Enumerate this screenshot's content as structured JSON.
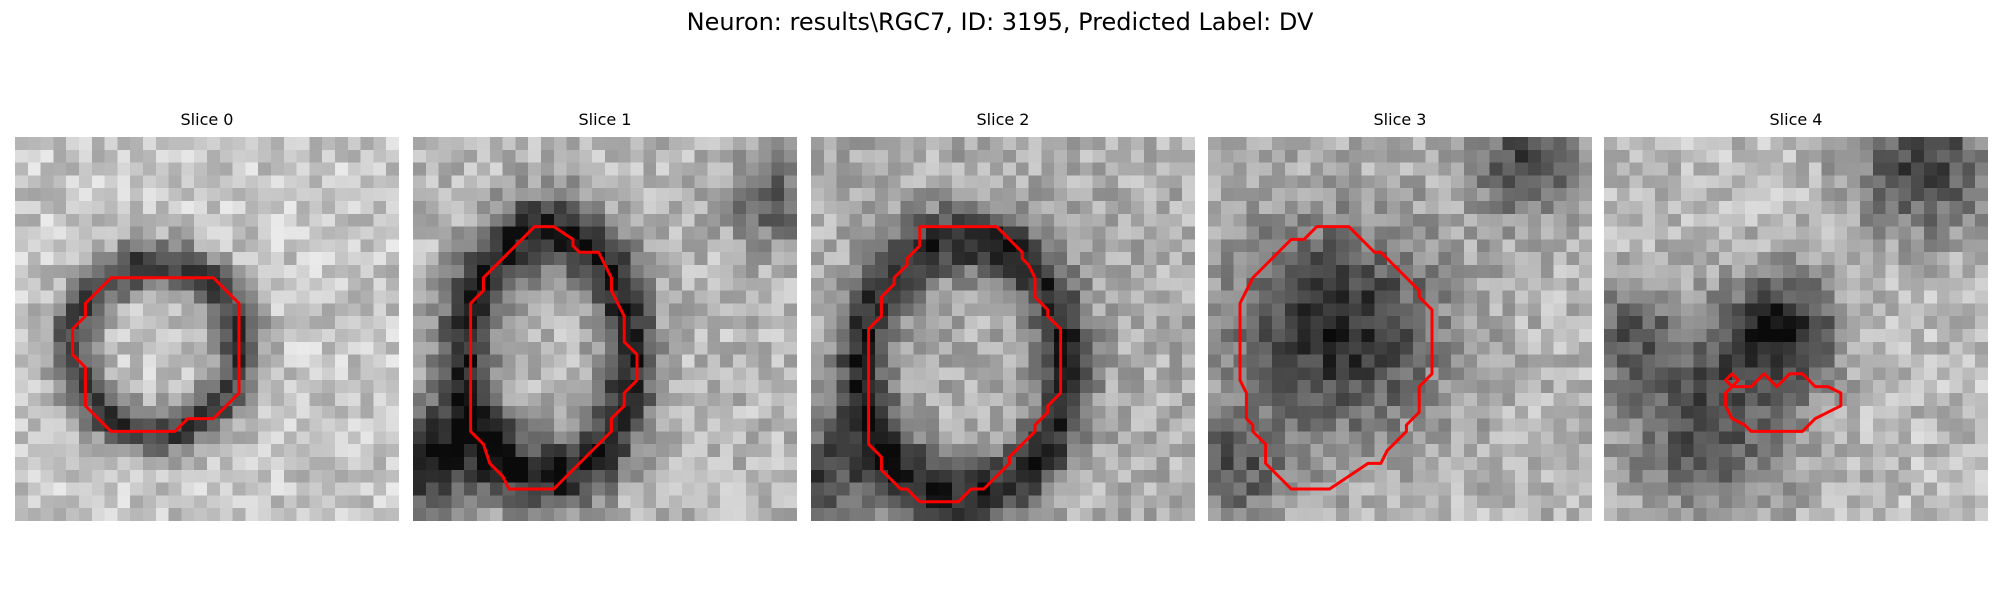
{
  "figure": {
    "title": "Neuron: results\\RGC7, ID: 3195, Predicted Label: DV"
  },
  "colormap": "gray",
  "contour_color": "#ff0000",
  "slices": [
    {
      "title": "Slice 0",
      "contours": [
        [
          [
            12.5,
            11
          ],
          [
            15.5,
            11
          ],
          [
            17.5,
            13
          ],
          [
            17.5,
            20
          ],
          [
            15.5,
            22
          ],
          [
            13.5,
            22
          ],
          [
            13,
            22.5
          ],
          [
            12.5,
            23
          ],
          [
            10.5,
            23
          ],
          [
            7.5,
            23
          ],
          [
            5.5,
            21
          ],
          [
            5.5,
            18
          ],
          [
            4.5,
            17
          ],
          [
            4.5,
            15
          ],
          [
            5.5,
            14
          ],
          [
            5.5,
            13
          ],
          [
            7.5,
            11
          ],
          [
            12.5,
            11
          ]
        ]
      ]
    },
    {
      "title": "Slice 1",
      "contours": [
        [
          [
            9.5,
            7
          ],
          [
            11,
            7
          ],
          [
            12.5,
            8
          ],
          [
            12.5,
            8.5
          ],
          [
            13,
            9
          ],
          [
            14.5,
            9
          ],
          [
            15,
            10
          ],
          [
            15.5,
            11
          ],
          [
            15.5,
            12
          ],
          [
            16,
            13
          ],
          [
            16.5,
            14
          ],
          [
            16.5,
            16
          ],
          [
            17.5,
            17
          ],
          [
            17.5,
            19
          ],
          [
            16.5,
            20
          ],
          [
            16.5,
            21
          ],
          [
            15.5,
            22
          ],
          [
            15.5,
            23
          ],
          [
            13.5,
            25
          ],
          [
            12.5,
            26
          ],
          [
            11,
            27.5
          ],
          [
            7.5,
            27.5
          ],
          [
            7,
            26.5
          ],
          [
            6.5,
            26
          ],
          [
            6,
            25.5
          ],
          [
            5.5,
            24
          ],
          [
            5,
            23.5
          ],
          [
            4.5,
            23
          ],
          [
            4.5,
            13
          ],
          [
            5.5,
            12
          ],
          [
            5.5,
            11
          ],
          [
            7.5,
            9
          ],
          [
            8,
            8.5
          ],
          [
            8.5,
            8
          ],
          [
            9.5,
            7
          ]
        ]
      ]
    },
    {
      "title": "Slice 2",
      "contours": [
        [
          [
            8.5,
            7
          ],
          [
            14.5,
            7
          ],
          [
            16.5,
            9
          ],
          [
            16.5,
            9.5
          ],
          [
            17,
            10
          ],
          [
            17.5,
            11
          ],
          [
            17.5,
            12.5
          ],
          [
            18.5,
            13.5
          ],
          [
            18.5,
            14
          ],
          [
            19.5,
            15
          ],
          [
            19.5,
            20
          ],
          [
            18.5,
            21
          ],
          [
            18.5,
            21.5
          ],
          [
            17.5,
            22.5
          ],
          [
            17.5,
            23
          ],
          [
            15.5,
            25
          ],
          [
            15.5,
            25.5
          ],
          [
            13.5,
            27.5
          ],
          [
            12.5,
            27.5
          ],
          [
            12,
            28
          ],
          [
            11.5,
            28.5
          ],
          [
            8.5,
            28.5
          ],
          [
            8,
            28
          ],
          [
            7.5,
            27.5
          ],
          [
            7,
            27.5
          ],
          [
            6,
            26.5
          ],
          [
            5.5,
            26
          ],
          [
            5.5,
            25
          ],
          [
            4.5,
            24
          ],
          [
            4.5,
            23
          ],
          [
            4.5,
            15
          ],
          [
            5.5,
            14
          ],
          [
            5.5,
            12.5
          ],
          [
            6.5,
            11.5
          ],
          [
            6.5,
            11
          ],
          [
            7.5,
            10
          ],
          [
            7.5,
            9.5
          ],
          [
            8.5,
            8.5
          ],
          [
            8.5,
            7
          ]
        ]
      ]
    },
    {
      "title": "Slice 3",
      "contours": [
        [
          [
            9.5,
            7
          ],
          [
            11,
            7
          ],
          [
            12.5,
            8.5
          ],
          [
            13,
            9
          ],
          [
            13.5,
            9
          ],
          [
            16,
            11.5
          ],
          [
            16.5,
            12
          ],
          [
            16.5,
            12.5
          ],
          [
            17.5,
            13.5
          ],
          [
            17.5,
            18.5
          ],
          [
            16.5,
            19.5
          ],
          [
            16.5,
            21.5
          ],
          [
            15.5,
            22.5
          ],
          [
            15.5,
            23
          ],
          [
            14.5,
            24
          ],
          [
            14,
            24.5
          ],
          [
            13.5,
            25.5
          ],
          [
            12.5,
            25.5
          ],
          [
            11,
            26.5
          ],
          [
            9.5,
            27.5
          ],
          [
            6.5,
            27.5
          ],
          [
            6,
            27
          ],
          [
            5.5,
            26.5
          ],
          [
            4.5,
            25.5
          ],
          [
            4.5,
            24
          ],
          [
            3.5,
            23
          ],
          [
            3.5,
            22.5
          ],
          [
            3,
            22
          ],
          [
            3,
            20
          ],
          [
            2.5,
            19
          ],
          [
            2.5,
            13
          ],
          [
            3,
            12
          ],
          [
            3.5,
            11
          ],
          [
            4.5,
            10
          ],
          [
            5.5,
            9
          ],
          [
            6.5,
            8
          ],
          [
            7.5,
            8
          ],
          [
            8.5,
            7
          ],
          [
            9.5,
            7
          ]
        ]
      ]
    },
    {
      "title": "Slice 4",
      "contours": [
        [
          [
            9.5,
            19
          ],
          [
            10,
            18.5
          ],
          [
            10.5,
            19
          ],
          [
            10,
            19.5
          ],
          [
            9.5,
            19
          ]
        ],
        [
          [
            9.5,
            20
          ],
          [
            10,
            19.5
          ],
          [
            11.5,
            19.5
          ],
          [
            12,
            19
          ],
          [
            12.5,
            18.5
          ],
          [
            13,
            19
          ],
          [
            13.5,
            19.5
          ],
          [
            14.5,
            18.5
          ],
          [
            15.5,
            18.5
          ],
          [
            16,
            19
          ],
          [
            16.5,
            19.5
          ],
          [
            17.5,
            19.5
          ],
          [
            18.5,
            20
          ],
          [
            18.5,
            21
          ],
          [
            17.5,
            21.5
          ],
          [
            16.5,
            22
          ],
          [
            15.5,
            23
          ],
          [
            11.5,
            23
          ],
          [
            11,
            22.5
          ],
          [
            10,
            22
          ],
          [
            9.5,
            21
          ],
          [
            9.5,
            20
          ]
        ]
      ]
    }
  ]
}
